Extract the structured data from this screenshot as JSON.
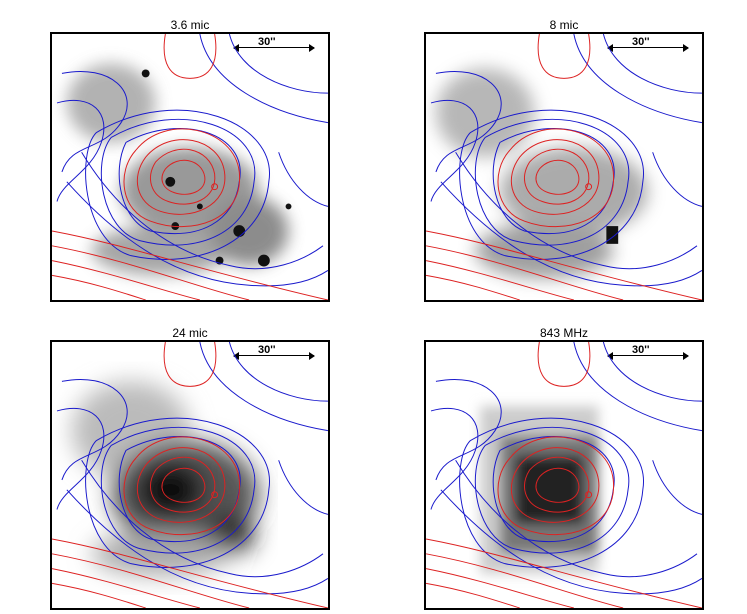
{
  "panels": [
    {
      "title": "3.6 mic",
      "scale_label": "30''"
    },
    {
      "title": "8 mic",
      "scale_label": "30''"
    },
    {
      "title": "24 mic",
      "scale_label": "30''"
    },
    {
      "title": "843 MHz",
      "scale_label": "30''"
    }
  ],
  "colors": {
    "contour_low": "#1a1acc",
    "contour_high": "#dd2222",
    "frame": "#000000"
  }
}
